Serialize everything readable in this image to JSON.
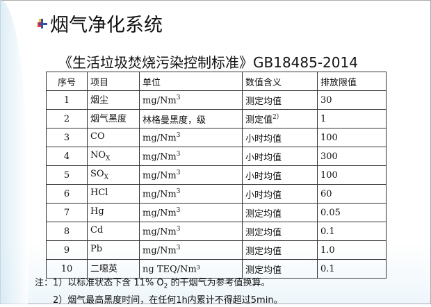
{
  "title": "烟气净化系统",
  "subtitle": "《生活垃圾焚烧污染控制标准》GB18485-2014",
  "table": {
    "headers": [
      "序号",
      "项目",
      "单位",
      "数值含义",
      "排放限值"
    ],
    "rows": [
      {
        "no": "1",
        "item": "烟尘",
        "item_sub": "",
        "unit": "mg/Nm",
        "unit_sup": "3",
        "meaning": "测定均值",
        "meaning_sup": "",
        "limit": "30"
      },
      {
        "no": "2",
        "item": "烟气黑度",
        "item_sub": "",
        "unit": "林格曼黑度，级",
        "unit_sup": "",
        "meaning": "测定值",
        "meaning_sup": "2）",
        "limit": "1"
      },
      {
        "no": "3",
        "item": "CO",
        "item_sub": "",
        "unit": "mg/Nm",
        "unit_sup": "3",
        "meaning": "小时均值",
        "meaning_sup": "",
        "limit": "100"
      },
      {
        "no": "4",
        "item": "NO",
        "item_sub": "X",
        "unit": "mg/Nm",
        "unit_sup": "3",
        "meaning": "小时均值",
        "meaning_sup": "",
        "limit": "300"
      },
      {
        "no": "5",
        "item": "SO",
        "item_sub": "X",
        "unit": "mg/Nm",
        "unit_sup": "3",
        "meaning": "小时均值",
        "meaning_sup": "",
        "limit": "100"
      },
      {
        "no": "6",
        "item": "HCl",
        "item_sub": "",
        "unit": "mg/Nm",
        "unit_sup": "3",
        "meaning": "小时均值",
        "meaning_sup": "",
        "limit": "60"
      },
      {
        "no": "7",
        "item": "Hg",
        "item_sub": "",
        "unit": "mg/Nm",
        "unit_sup": "3",
        "meaning": "测定均值",
        "meaning_sup": "",
        "limit": "0.05"
      },
      {
        "no": "8",
        "item": "Cd",
        "item_sub": "",
        "unit": "mg/Nm",
        "unit_sup": "3",
        "meaning": "测定均值",
        "meaning_sup": "",
        "limit": "0.1"
      },
      {
        "no": "9",
        "item": "Pb",
        "item_sub": "",
        "unit": "mg/Nm",
        "unit_sup": "3",
        "meaning": "测定均值",
        "meaning_sup": "",
        "limit": "1.0"
      },
      {
        "no": "10",
        "item": "二噁英",
        "item_sub": "",
        "unit": "ng TEQ/Nm³",
        "unit_sup": "",
        "meaning": "测定均值",
        "meaning_sup": "",
        "limit": "0.1"
      }
    ]
  },
  "notes": {
    "n1_pre": "注：1）以标准状态下含 11% O",
    "n1_sub": "2",
    "n1_post": " 的干烟气为参考值换算。",
    "n2": "2）烟气最高黑度时间，在任何1h内累计不得超过5min。"
  }
}
